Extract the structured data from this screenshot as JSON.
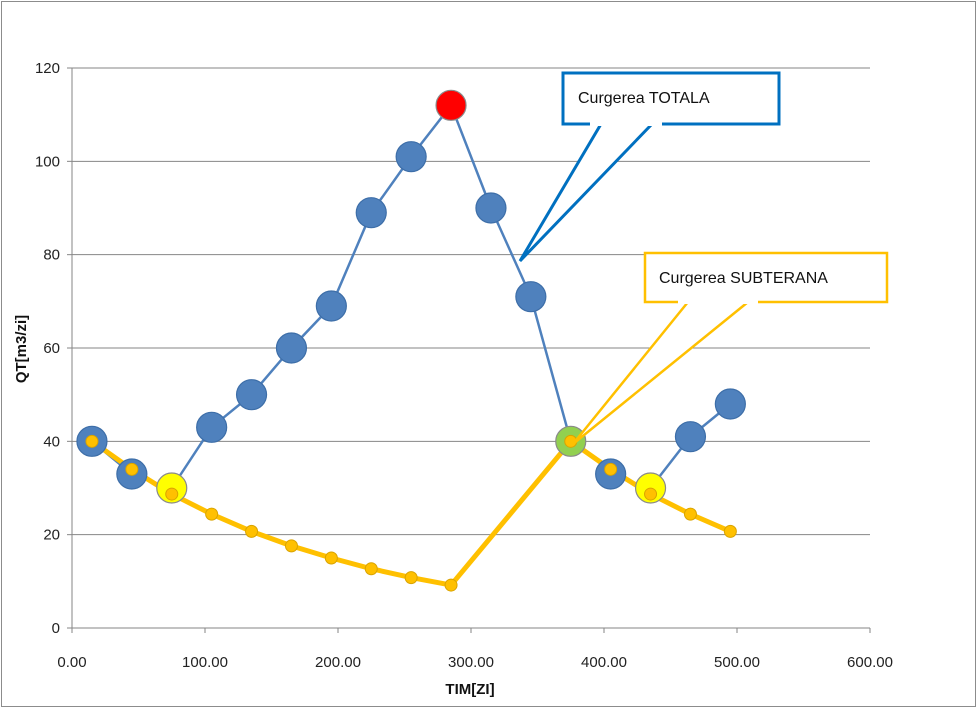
{
  "chart_data": {
    "type": "scatter",
    "title": "",
    "xlabel": "TIM[ZI]",
    "ylabel": "QT[m3/zi]",
    "xlim": [
      0,
      600
    ],
    "ylim": [
      0,
      120
    ],
    "x_ticks": [
      0,
      100,
      200,
      300,
      400,
      500,
      600
    ],
    "x_tick_labels": [
      "0.00",
      "100.00",
      "200.00",
      "300.00",
      "400.00",
      "500.00",
      "600.00"
    ],
    "y_ticks": [
      0,
      20,
      40,
      60,
      80,
      100,
      120
    ],
    "y_tick_labels": [
      "0",
      "20",
      "40",
      "60",
      "80",
      "100",
      "120"
    ],
    "grid": true,
    "legend": "none",
    "series": [
      {
        "color": "#4f81bd",
        "x": [
          15,
          45,
          75,
          105,
          135,
          165,
          195,
          225,
          255,
          285,
          315,
          345,
          375,
          405,
          435,
          465,
          495
        ],
        "y": [
          40,
          33,
          30,
          43,
          50,
          60,
          69,
          89,
          101,
          112,
          90,
          71,
          40,
          33,
          30,
          41,
          48
        ],
        "segments": [
          [
            0,
            1
          ],
          [
            2,
            12
          ],
          [
            14,
            16
          ]
        ]
      },
      {
        "color": "#ffc000",
        "x": [
          15,
          45,
          75,
          105,
          135,
          165,
          195,
          225,
          255,
          285,
          375,
          405,
          435,
          465,
          495
        ],
        "y": [
          40,
          34,
          28.7,
          24.4,
          20.7,
          17.6,
          15,
          12.7,
          10.8,
          9.2,
          40,
          34,
          28.7,
          24.4,
          20.7
        ]
      }
    ],
    "highlighted_points": [
      {
        "x": 285,
        "y": 112,
        "color": "#ff0000"
      },
      {
        "x": 375,
        "y": 40,
        "color": "#92d050"
      },
      {
        "x": 75,
        "y": 30,
        "color": "#ffff00"
      },
      {
        "x": 435,
        "y": 30,
        "color": "#ffff00"
      }
    ],
    "annotations": [
      {
        "text": "Curgerea TOTALA",
        "border_color": "#0070c0"
      },
      {
        "text": "Curgerea SUBTERANA",
        "border_color": "#ffc000"
      }
    ]
  }
}
